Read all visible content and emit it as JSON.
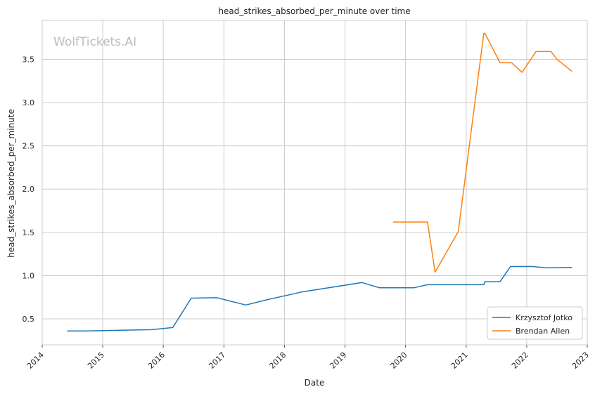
{
  "chart_data": {
    "type": "line",
    "title": "head_strikes_absorbed_per_minute over time",
    "xlabel": "Date",
    "ylabel": "head_strikes_absorbed_per_minute",
    "watermark": "WolfTickets.AI",
    "xlim": [
      "2014-01-01",
      "2023-01-01"
    ],
    "ylim": [
      0.2,
      3.95
    ],
    "x_ticks": [
      "2014",
      "2015",
      "2016",
      "2017",
      "2018",
      "2019",
      "2020",
      "2021",
      "2022",
      "2023"
    ],
    "y_ticks": [
      "0.5",
      "1.0",
      "1.5",
      "2.0",
      "2.5",
      "3.0",
      "3.5"
    ],
    "grid": true,
    "legend_position": "bottom-right",
    "series": [
      {
        "name": "Krzysztof Jotko",
        "color": "#1f77b4",
        "points": [
          [
            "2014-05-31",
            0.36
          ],
          [
            "2014-09-15",
            0.36
          ],
          [
            "2015-10-24",
            0.375
          ],
          [
            "2016-02-27",
            0.4
          ],
          [
            "2016-06-18",
            0.74
          ],
          [
            "2016-11-19",
            0.745
          ],
          [
            "2017-05-13",
            0.66
          ],
          [
            "2017-09-16",
            0.72
          ],
          [
            "2018-04-14",
            0.81
          ],
          [
            "2019-04-13",
            0.92
          ],
          [
            "2019-07-27",
            0.86
          ],
          [
            "2020-02-22",
            0.86
          ],
          [
            "2020-05-13",
            0.895
          ],
          [
            "2021-04-17",
            0.895
          ],
          [
            "2021-04-24",
            0.93
          ],
          [
            "2021-07-24",
            0.93
          ],
          [
            "2021-09-25",
            1.105
          ],
          [
            "2022-02-05",
            1.105
          ],
          [
            "2022-04-30",
            1.09
          ],
          [
            "2022-10-01",
            1.095
          ]
        ]
      },
      {
        "name": "Brendan Allen",
        "color": "#ff7f0e",
        "points": [
          [
            "2019-10-18",
            1.62
          ],
          [
            "2020-05-13",
            1.62
          ],
          [
            "2020-06-27",
            1.04
          ],
          [
            "2020-11-14",
            1.51
          ],
          [
            "2021-04-17",
            3.8
          ],
          [
            "2021-04-24",
            3.8
          ],
          [
            "2021-07-24",
            3.46
          ],
          [
            "2021-10-02",
            3.46
          ],
          [
            "2021-12-04",
            3.35
          ],
          [
            "2022-02-26",
            3.59
          ],
          [
            "2022-05-28",
            3.59
          ],
          [
            "2022-07-02",
            3.5
          ],
          [
            "2022-10-01",
            3.36
          ]
        ]
      }
    ]
  }
}
